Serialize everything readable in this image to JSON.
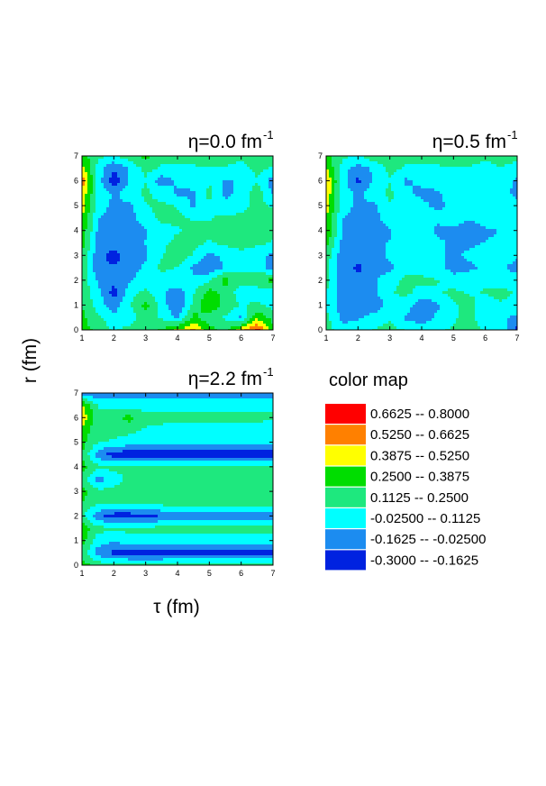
{
  "chart_data": [
    {
      "type": "heatmap",
      "id": "p0",
      "title": "η=0.0 fm",
      "title_sup": "-1",
      "xlim": [
        1,
        7
      ],
      "ylim": [
        0,
        7
      ],
      "xticks": [
        1,
        2,
        3,
        4,
        5,
        6,
        7
      ],
      "yticks": [
        0,
        1,
        2,
        3,
        4,
        5,
        6,
        7
      ],
      "x": [
        1,
        1.5,
        2,
        2.5,
        3,
        3.5,
        4,
        4.5,
        5,
        5.5,
        6,
        6.5,
        7
      ],
      "y": [
        0,
        0.5,
        1,
        1.5,
        2,
        2.5,
        3,
        3.5,
        4,
        4.5,
        5,
        5.5,
        6,
        6.5,
        7
      ],
      "z": [
        [
          0.3,
          0.22,
          0.1,
          0.15,
          0.2,
          0.26,
          0.4,
          0.55,
          0.3,
          0.2,
          0.45,
          0.7,
          0.3
        ],
        [
          0.28,
          0.15,
          0.0,
          0.05,
          0.18,
          0.1,
          -0.05,
          0.3,
          0.15,
          0.1,
          -0.05,
          0.35,
          0.2
        ],
        [
          0.25,
          0.05,
          -0.1,
          0.1,
          0.3,
          0.05,
          -0.18,
          0.15,
          0.4,
          0.2,
          0.1,
          0.15,
          0.05
        ],
        [
          0.2,
          0.02,
          -0.22,
          0.05,
          0.15,
          0.0,
          -0.1,
          0.1,
          0.3,
          0.2,
          0.05,
          0.0,
          0.02
        ],
        [
          0.22,
          -0.05,
          -0.12,
          -0.05,
          0.05,
          0.02,
          0.1,
          0.0,
          0.1,
          0.3,
          0.15,
          0.25,
          0.3
        ],
        [
          0.2,
          -0.12,
          -0.15,
          -0.08,
          0.0,
          0.15,
          0.1,
          -0.05,
          -0.15,
          0.0,
          0.1,
          0.05,
          -0.1
        ],
        [
          0.25,
          -0.12,
          -0.22,
          -0.1,
          -0.05,
          0.1,
          0.2,
          0.1,
          -0.05,
          0.0,
          0.05,
          0.0,
          -0.05
        ],
        [
          0.3,
          -0.08,
          -0.1,
          -0.05,
          -0.02,
          0.08,
          0.15,
          0.15,
          0.1,
          0.15,
          0.2,
          0.15,
          0.1
        ],
        [
          0.35,
          -0.05,
          -0.12,
          -0.1,
          -0.04,
          0.05,
          0.1,
          0.15,
          0.15,
          0.2,
          0.2,
          0.15,
          0.15
        ],
        [
          0.4,
          -0.02,
          -0.1,
          -0.08,
          0.05,
          0.15,
          0.15,
          0.1,
          0.1,
          0.15,
          0.15,
          0.2,
          0.15
        ],
        [
          0.45,
          0.05,
          -0.05,
          -0.05,
          0.1,
          0.15,
          0.1,
          -0.05,
          0.1,
          0.0,
          0.05,
          0.15,
          0.1
        ],
        [
          0.5,
          0.08,
          -0.05,
          0.05,
          0.15,
          0.05,
          -0.05,
          -0.05,
          0.15,
          -0.05,
          0.0,
          0.2,
          -0.05
        ],
        [
          0.6,
          0.05,
          -0.25,
          0.0,
          0.1,
          -0.1,
          0.0,
          0.05,
          0.1,
          -0.05,
          0.0,
          0.1,
          -0.1
        ],
        [
          0.45,
          0.05,
          -0.15,
          0.0,
          0.15,
          0.1,
          0.05,
          0.1,
          0.1,
          0.1,
          0.05,
          0.15,
          0.1
        ],
        [
          0.3,
          0.15,
          0.1,
          0.2,
          0.3,
          0.15,
          0.2,
          0.15,
          0.2,
          0.2,
          0.15,
          0.2,
          0.15
        ]
      ]
    },
    {
      "type": "heatmap",
      "id": "p1",
      "title": "η=0.5 fm",
      "title_sup": "-1",
      "xlim": [
        1,
        7
      ],
      "ylim": [
        0,
        7
      ],
      "xticks": [
        1,
        2,
        3,
        4,
        5,
        6,
        7
      ],
      "yticks": [
        0,
        1,
        2,
        3,
        4,
        5,
        6,
        7
      ],
      "x": [
        1,
        1.5,
        2,
        2.5,
        3,
        3.5,
        4,
        4.5,
        5,
        5.5,
        6,
        6.5,
        7
      ],
      "y": [
        0,
        0.5,
        1,
        1.5,
        2,
        2.5,
        3,
        3.5,
        4,
        4.5,
        5,
        5.5,
        6,
        6.5,
        7
      ],
      "z": [
        [
          0.2,
          0.0,
          0.05,
          0.12,
          0.15,
          0.1,
          0.05,
          0.1,
          0.12,
          0.15,
          0.1,
          0.05,
          -0.2
        ],
        [
          0.15,
          -0.05,
          -0.05,
          0.05,
          0.1,
          -0.05,
          -0.1,
          0.0,
          0.1,
          0.15,
          0.05,
          0.0,
          -0.05
        ],
        [
          0.1,
          -0.1,
          -0.12,
          -0.15,
          0.05,
          0.05,
          -0.12,
          -0.05,
          0.1,
          0.15,
          0.05,
          0.1,
          0.05
        ],
        [
          0.12,
          -0.1,
          -0.08,
          -0.05,
          0.1,
          0.15,
          0.05,
          0.1,
          0.15,
          0.1,
          0.12,
          0.15,
          0.1
        ],
        [
          0.15,
          -0.12,
          -0.1,
          -0.05,
          0.05,
          0.15,
          0.15,
          0.12,
          0.0,
          0.05,
          0.1,
          0.05,
          0.05
        ],
        [
          0.15,
          -0.08,
          -0.2,
          -0.08,
          -0.05,
          0.05,
          0.05,
          0.0,
          -0.05,
          -0.05,
          0.0,
          0.0,
          -0.08
        ],
        [
          0.2,
          -0.1,
          -0.1,
          -0.08,
          0.0,
          0.05,
          0.08,
          0.0,
          -0.05,
          0.0,
          0.05,
          0.05,
          0.0
        ],
        [
          0.3,
          -0.05,
          -0.1,
          -0.05,
          -0.02,
          0.05,
          0.08,
          0.0,
          -0.05,
          -0.05,
          -0.02,
          0.0,
          0.0
        ],
        [
          0.4,
          -0.05,
          -0.12,
          -0.1,
          -0.04,
          0.05,
          0.05,
          -0.05,
          -0.05,
          -0.15,
          -0.05,
          -0.02,
          0.0
        ],
        [
          0.4,
          -0.02,
          -0.1,
          -0.08,
          0.05,
          0.1,
          0.05,
          0.0,
          0.05,
          0.0,
          0.05,
          0.1,
          0.1
        ],
        [
          0.45,
          0.05,
          -0.05,
          -0.05,
          0.1,
          0.05,
          0.0,
          -0.05,
          0.0,
          0.05,
          0.0,
          0.05,
          0.0
        ],
        [
          0.5,
          0.05,
          -0.05,
          0.05,
          0.15,
          0.0,
          -0.05,
          -0.05,
          0.05,
          0.0,
          -0.02,
          0.0,
          -0.05
        ],
        [
          0.55,
          0.05,
          -0.2,
          0.0,
          0.1,
          -0.05,
          0.0,
          0.05,
          0.1,
          0.05,
          0.0,
          0.05,
          -0.05
        ],
        [
          0.4,
          0.05,
          -0.1,
          0.0,
          0.15,
          0.1,
          0.05,
          0.1,
          0.1,
          0.1,
          0.05,
          0.1,
          0.05
        ],
        [
          0.3,
          0.15,
          0.1,
          0.2,
          0.2,
          0.15,
          0.2,
          0.15,
          0.2,
          0.2,
          0.15,
          0.2,
          0.15
        ]
      ]
    },
    {
      "type": "heatmap",
      "id": "p2",
      "title": "η=2.2 fm",
      "title_sup": "-1",
      "xlabel": "τ (fm)",
      "ylabel": "r (fm)",
      "xlim": [
        1,
        7
      ],
      "ylim": [
        0,
        7
      ],
      "xticks": [
        1,
        2,
        3,
        4,
        5,
        6,
        7
      ],
      "yticks": [
        0,
        1,
        2,
        3,
        4,
        5,
        6,
        7
      ],
      "x": [
        1,
        1.5,
        2,
        2.5,
        3,
        3.5,
        4,
        4.5,
        5,
        5.5,
        6,
        6.5,
        7
      ],
      "y": [
        0,
        0.5,
        1,
        1.5,
        2,
        2.5,
        3,
        3.5,
        4,
        4.5,
        5,
        5.5,
        6,
        6.5,
        7
      ],
      "z": [
        [
          0.3,
          0.2,
          0.15,
          0.15,
          0.15,
          0.15,
          0.15,
          0.15,
          0.15,
          0.15,
          0.15,
          0.15,
          0.15
        ],
        [
          0.2,
          -0.1,
          -0.2,
          -0.22,
          -0.22,
          -0.22,
          -0.2,
          -0.2,
          -0.2,
          -0.2,
          -0.2,
          -0.2,
          -0.2
        ],
        [
          0.3,
          0.05,
          0.0,
          0.05,
          0.05,
          0.05,
          0.05,
          0.05,
          0.05,
          0.05,
          0.05,
          0.05,
          0.05
        ],
        [
          0.35,
          0.15,
          0.15,
          0.15,
          0.15,
          0.15,
          0.15,
          0.15,
          0.15,
          0.15,
          0.15,
          0.15,
          0.15
        ],
        [
          0.15,
          -0.12,
          -0.25,
          -0.25,
          -0.22,
          -0.15,
          -0.1,
          -0.1,
          -0.08,
          -0.08,
          -0.08,
          -0.08,
          -0.08
        ],
        [
          0.25,
          0.12,
          0.15,
          0.15,
          0.15,
          0.15,
          0.15,
          0.15,
          0.15,
          0.15,
          0.15,
          0.15,
          0.15
        ],
        [
          0.3,
          0.15,
          0.15,
          0.15,
          0.15,
          0.15,
          0.15,
          0.15,
          0.15,
          0.15,
          0.15,
          0.15,
          0.15
        ],
        [
          0.2,
          -0.1,
          0.05,
          0.15,
          0.15,
          0.15,
          0.15,
          0.15,
          0.15,
          0.15,
          0.15,
          0.15,
          0.15
        ],
        [
          0.3,
          0.15,
          0.15,
          0.15,
          0.15,
          0.15,
          0.15,
          0.15,
          0.15,
          0.15,
          0.15,
          0.15,
          0.15
        ],
        [
          0.25,
          -0.1,
          -0.25,
          -0.25,
          -0.25,
          -0.25,
          -0.25,
          -0.25,
          -0.25,
          -0.25,
          -0.25,
          -0.25,
          -0.25
        ],
        [
          0.3,
          0.12,
          0.1,
          0.05,
          0.02,
          0.0,
          0.0,
          0.0,
          0.0,
          0.0,
          0.0,
          0.0,
          0.0
        ],
        [
          0.35,
          0.15,
          0.15,
          0.15,
          0.1,
          0.08,
          0.05,
          0.05,
          0.05,
          0.05,
          0.05,
          0.05,
          0.0
        ],
        [
          0.5,
          0.15,
          0.2,
          0.3,
          0.15,
          0.15,
          0.15,
          0.15,
          0.15,
          0.15,
          0.15,
          0.15,
          0.15
        ],
        [
          0.4,
          0.1,
          0.05,
          0.05,
          0.05,
          0.05,
          0.05,
          0.05,
          0.05,
          0.05,
          0.05,
          0.05,
          0.05
        ],
        [
          -0.1,
          -0.15,
          -0.1,
          -0.1,
          -0.1,
          -0.1,
          -0.1,
          -0.1,
          -0.1,
          -0.1,
          -0.1,
          -0.1,
          -0.1
        ]
      ]
    }
  ],
  "figure": {
    "xlabel": "τ (fm)",
    "ylabel": "r (fm)"
  },
  "legend": {
    "title": "color map",
    "levels": [
      -0.3,
      -0.1625,
      -0.025,
      0.1125,
      0.25,
      0.3875,
      0.525,
      0.6625,
      0.8
    ],
    "entries": [
      {
        "color": "#ff0000",
        "label": "0.6625   --  0.8000"
      },
      {
        "color": "#ff8000",
        "label": "0.5250   --  0.6625"
      },
      {
        "color": "#ffff00",
        "label": "0.3875   --  0.5250"
      },
      {
        "color": "#00dd00",
        "label": "0.2500   --  0.3875"
      },
      {
        "color": "#1ee87e",
        "label": "0.1125   --  0.2500"
      },
      {
        "color": "#00ffff",
        "label": "-0.02500   --  0.1125"
      },
      {
        "color": "#1c8cf0",
        "label": "-0.1625   --  -0.02500"
      },
      {
        "color": "#0022e0",
        "label": "-0.3000   --  -0.1625"
      }
    ]
  }
}
